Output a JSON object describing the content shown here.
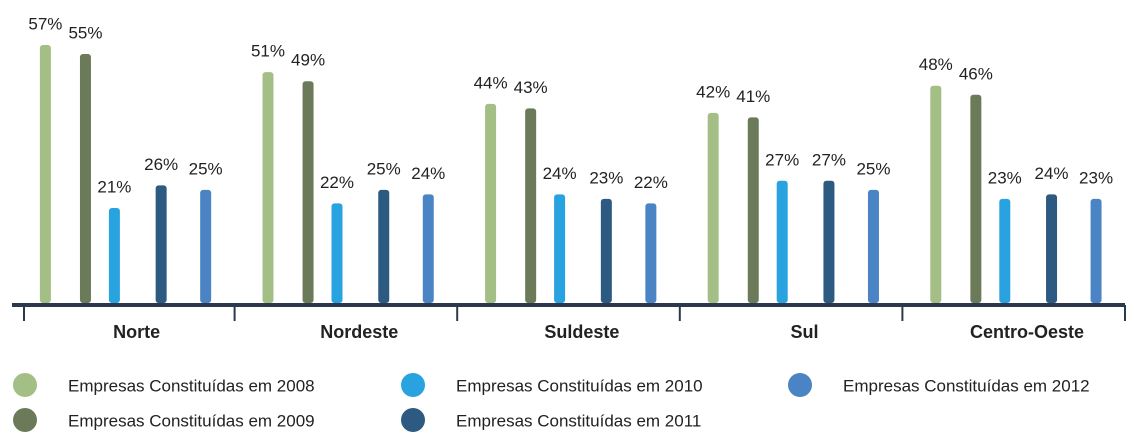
{
  "chart_data": {
    "type": "bar",
    "categories": [
      "Norte",
      "Nordeste",
      "Suldeste",
      "Sul",
      "Centro-Oeste"
    ],
    "series": [
      {
        "name": "Empresas Constituídas em 2008",
        "color": "#a3bf86",
        "values": [
          57,
          51,
          44,
          42,
          48
        ],
        "value_labels": [
          "57%",
          "51%",
          "44%",
          "42%",
          "48%"
        ]
      },
      {
        "name": "Empresas Constituídas em 2009",
        "color": "#6b7b5a",
        "values": [
          55,
          49,
          43,
          41,
          46
        ],
        "value_labels": [
          "55%",
          "49%",
          "43%",
          "41%",
          "46%"
        ]
      },
      {
        "name": "Empresas Constituídas em 2010",
        "color": "#29a3e0",
        "values": [
          21,
          22,
          24,
          27,
          23
        ],
        "value_labels": [
          "21%",
          "22%",
          "24%",
          "27%",
          "23%"
        ]
      },
      {
        "name": "Empresas Constituídas em 2011",
        "color": "#2d5a80",
        "values": [
          26,
          25,
          23,
          27,
          24
        ],
        "value_labels": [
          "26%",
          "25%",
          "23%",
          "27%",
          "24%"
        ]
      },
      {
        "name": "Empresas Constituídas em 2012",
        "color": "#4a84c4",
        "values": [
          25,
          24,
          22,
          25,
          23
        ],
        "value_labels": [
          "25%",
          "24%",
          "22%",
          "25%",
          "23%"
        ]
      }
    ]
  }
}
